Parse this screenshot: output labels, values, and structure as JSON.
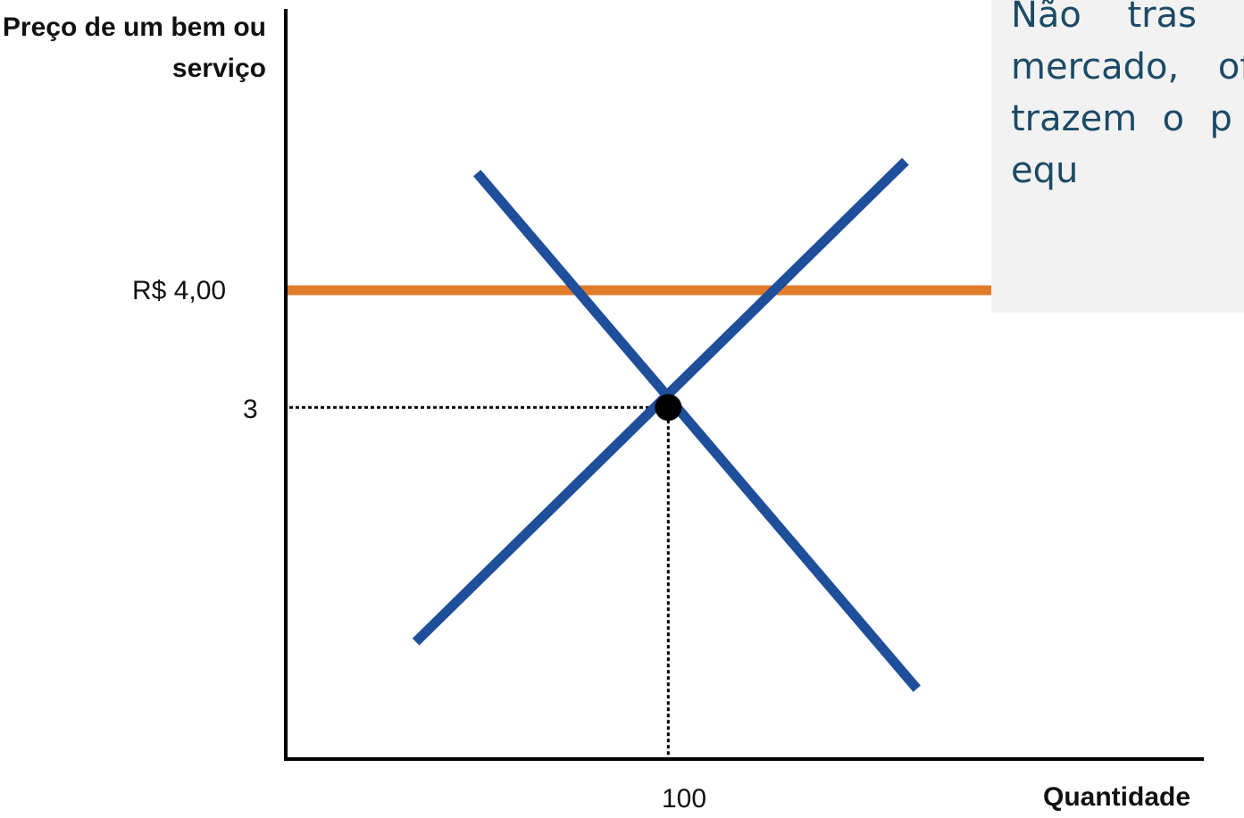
{
  "chart_data": {
    "type": "line",
    "y_axis_title": "Preço de um bem ou serviço",
    "x_axis_title": "Quantidade",
    "y_ticks": [
      "R$ 4,00",
      "3"
    ],
    "x_ticks": [
      "100"
    ],
    "equilibrium": {
      "quantity": 100,
      "price": 3
    },
    "price_floor": {
      "price": 4,
      "color": "#e07b2a"
    },
    "series": [
      {
        "role": "demand",
        "color": "#1f4e9a",
        "points": [
          [
            50,
            5.0
          ],
          [
            165,
            0.6
          ]
        ]
      },
      {
        "role": "supply",
        "color": "#1f4e9a",
        "points": [
          [
            34,
            1.0
          ],
          [
            162,
            5.1
          ]
        ]
      }
    ],
    "xlim": [
      0,
      240
    ],
    "ylim": [
      0,
      6.4
    ],
    "grid": false
  },
  "note": {
    "text": "Não tras práticas mercado, oferta e trazem o p para o equ"
  }
}
